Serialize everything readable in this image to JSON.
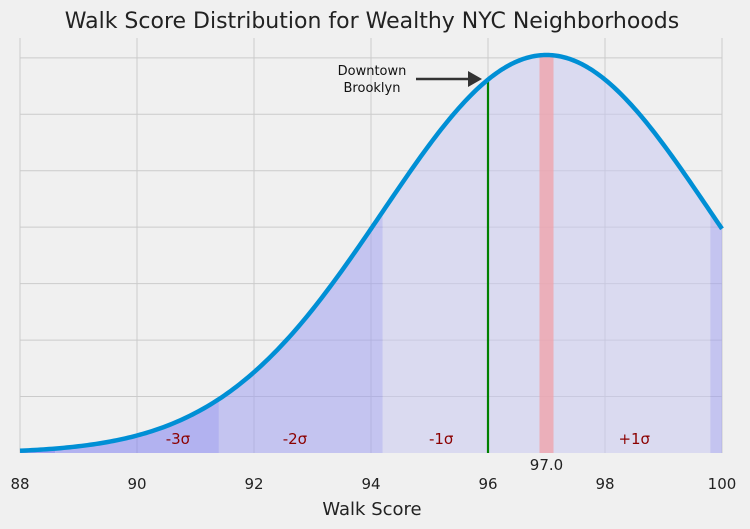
{
  "chart_data": {
    "type": "area",
    "title": "Walk Score Distribution for Wealthy NYC Neighborhoods",
    "xlabel": "Walk Score",
    "ylabel": "",
    "xlim": [
      88,
      100
    ],
    "x_ticks": [
      88,
      90,
      92,
      94,
      96,
      98,
      100
    ],
    "x_tick_labels": [
      "88",
      "90",
      "92",
      "94",
      "96",
      "98",
      "100"
    ],
    "y_ticks_visible": false,
    "grid": true,
    "distribution": {
      "kind": "normal",
      "mean": 97.0,
      "std": 2.8
    },
    "sigma_bands": [
      {
        "label": "-3σ",
        "from": 88.6,
        "to": 91.4
      },
      {
        "label": "-2σ",
        "from": 91.4,
        "to": 94.2
      },
      {
        "label": "-1σ",
        "from": 94.2,
        "to": 99.8
      },
      {
        "label": "+1σ",
        "from": 99.8,
        "to": 100
      }
    ],
    "band_label_positions": [
      90.7,
      92.7,
      95.2,
      98.5
    ],
    "band_labels": [
      "-3σ",
      "-2σ",
      "-1σ",
      "+1σ"
    ],
    "mean_marker": {
      "value": 97.0,
      "label": "97.0",
      "halfwidth": 0.12
    },
    "highlight": {
      "value": 96.0,
      "label_line1": "Downtown",
      "label_line2": "Brooklyn"
    },
    "colors": {
      "curve": "#008fd5",
      "band_outer": "#8080f0",
      "band_mid": "#a0a0f0",
      "band_inner": "#c8c8f0",
      "mean_band": "#f0a0a8",
      "highlight_line": "#008000",
      "band_label": "#8b0000"
    }
  }
}
